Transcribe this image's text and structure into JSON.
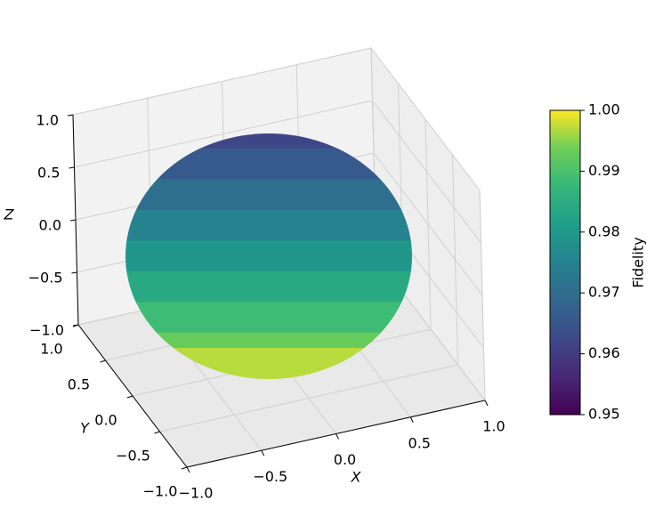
{
  "chart_data": {
    "type": "surface3d",
    "xlabel": "X",
    "ylabel": "Y",
    "zlabel": "Z",
    "xlim": [
      -1,
      1
    ],
    "ylim": [
      -1,
      1
    ],
    "zlim": [
      -1,
      1
    ],
    "xticks": [
      {
        "value": -1,
        "label": "−1.0"
      },
      {
        "value": -0.5,
        "label": "−0.5"
      },
      {
        "value": 0,
        "label": "0.0"
      },
      0.5,
      {
        "value": 1,
        "label": "1.0"
      }
    ],
    "yticks": [
      {
        "value": -1,
        "label": "−1.0"
      },
      {
        "value": -0.5,
        "label": "−0.5"
      },
      {
        "value": 0,
        "label": "0.0"
      },
      0.5,
      {
        "value": 1,
        "label": "1.0"
      }
    ],
    "zticks": [
      {
        "value": -1,
        "label": "−1.0"
      },
      {
        "value": -0.5,
        "label": "−0.5"
      },
      {
        "value": 0,
        "label": "0.0"
      },
      0.5,
      {
        "value": 1,
        "label": "1.0"
      }
    ],
    "grid": true,
    "surface": {
      "z": [
        1,
        0.75,
        0.5,
        0.25,
        0,
        -0.25,
        -0.5,
        -0.75,
        -1
      ],
      "fidelity": [
        0.962,
        0.966,
        0.9705,
        0.975,
        0.9795,
        0.984,
        0.9885,
        0.993,
        0.997
      ]
    },
    "colorbar": {
      "label": "Fidelity",
      "colormap": "viridis",
      "clim": [
        0.95,
        1
      ],
      "ticks": [
        0.95,
        0.96,
        0.97,
        0.98,
        0.99,
        {
          "value": 1,
          "label": "1.00"
        }
      ]
    }
  }
}
